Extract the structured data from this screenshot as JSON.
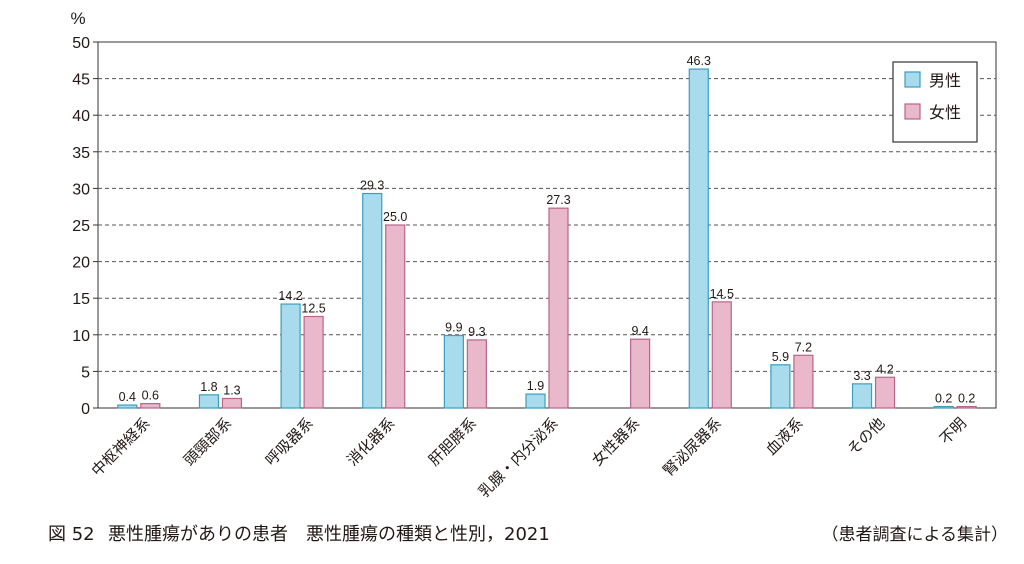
{
  "chart_data": {
    "type": "bar",
    "ylabel": "%",
    "ylim": [
      0,
      50
    ],
    "yticks": [
      0,
      5,
      10,
      15,
      20,
      25,
      30,
      35,
      40,
      45,
      50
    ],
    "grid": "horizontal-dashed",
    "legend_position": "top-right",
    "categories": [
      "中枢神経系",
      "頭頸部系",
      "呼吸器系",
      "消化器系",
      "肝胆膵系",
      "乳腺・内分泌系",
      "女性器系",
      "腎泌尿器系",
      "血液系",
      "その他",
      "不明"
    ],
    "series": [
      {
        "name": "男性",
        "color": "#a8dced",
        "values": [
          0.4,
          1.8,
          14.2,
          29.3,
          9.9,
          1.9,
          null,
          46.3,
          5.9,
          3.3,
          0.2
        ]
      },
      {
        "name": "女性",
        "color": "#e9b8cb",
        "values": [
          0.6,
          1.3,
          12.5,
          25.0,
          9.3,
          27.3,
          9.4,
          14.5,
          7.2,
          4.2,
          0.2
        ]
      }
    ]
  },
  "caption": {
    "figure_label": "図 52",
    "title": "悪性腫瘍がありの患者　悪性腫瘍の種類と性別，2021",
    "note": "（患者調査による集計）"
  }
}
